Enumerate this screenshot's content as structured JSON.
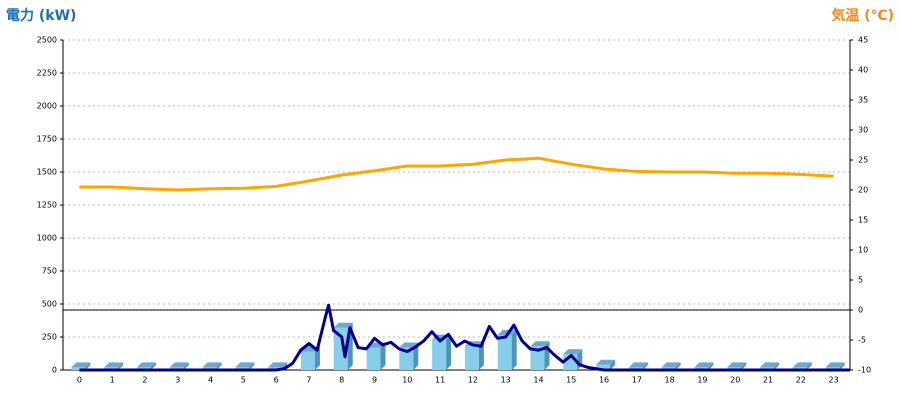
{
  "chart_data": {
    "type": "bar",
    "y_label": "電力 (kW)",
    "y2_label": "気温 (℃)",
    "categories": [
      "0",
      "1",
      "2",
      "3",
      "4",
      "5",
      "6",
      "7",
      "8",
      "9",
      "10",
      "11",
      "12",
      "13",
      "14",
      "15",
      "16",
      "17",
      "18",
      "19",
      "20",
      "21",
      "22",
      "23"
    ],
    "ylim": [
      0,
      2500
    ],
    "yticks": [
      0,
      250,
      500,
      750,
      1000,
      1250,
      1500,
      1750,
      2000,
      2250,
      2500
    ],
    "y2lim": [
      -10,
      45
    ],
    "y2ticks": [
      -10,
      -5,
      0,
      5,
      10,
      15,
      20,
      25,
      30,
      35,
      40,
      45
    ],
    "grid": true,
    "series": [
      {
        "type": "bar",
        "color": "#87ceeb",
        "values": [
          20,
          20,
          20,
          20,
          20,
          20,
          20,
          140,
          320,
          170,
          170,
          230,
          180,
          265,
          180,
          120,
          40,
          20,
          20,
          20,
          20,
          20,
          20,
          20
        ]
      },
      {
        "type": "line",
        "color": "#00008b",
        "x": [
          0,
          6,
          6.25,
          6.5,
          6.75,
          7,
          7.25,
          7.5,
          7.6,
          7.75,
          8,
          8.1,
          8.25,
          8.5,
          8.75,
          9,
          9.25,
          9.5,
          9.75,
          10,
          10.25,
          10.5,
          10.75,
          11,
          11.25,
          11.5,
          11.75,
          12,
          12.25,
          12.5,
          12.75,
          13,
          13.25,
          13.5,
          13.75,
          14,
          14.25,
          14.5,
          14.75,
          15,
          15.25,
          15.5,
          16,
          23.5
        ],
        "values": [
          0,
          0,
          10,
          50,
          150,
          200,
          150,
          400,
          490,
          300,
          250,
          100,
          320,
          170,
          160,
          240,
          190,
          210,
          160,
          140,
          175,
          220,
          290,
          220,
          270,
          180,
          220,
          190,
          180,
          330,
          240,
          250,
          340,
          220,
          160,
          150,
          170,
          110,
          60,
          110,
          40,
          20,
          0,
          0
        ]
      },
      {
        "type": "line",
        "color": "#ffa500",
        "axis": "y2",
        "values": [
          20.5,
          20.5,
          20.2,
          20,
          20.2,
          20.3,
          20.6,
          21.5,
          22.5,
          23.2,
          24,
          24,
          24.3,
          25,
          25.3,
          24.3,
          23.5,
          23.1,
          23,
          23,
          22.8,
          22.8,
          22.6,
          22.3
        ]
      }
    ]
  }
}
